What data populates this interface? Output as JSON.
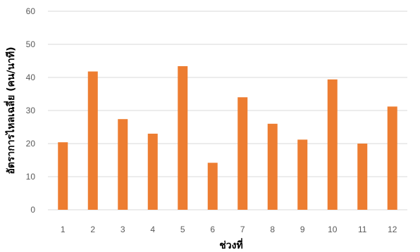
{
  "chart_data": {
    "type": "bar",
    "categories": [
      "1",
      "2",
      "3",
      "4",
      "5",
      "6",
      "7",
      "8",
      "9",
      "10",
      "11",
      "12"
    ],
    "values": [
      20.4,
      41.8,
      27.4,
      23.0,
      43.4,
      14.2,
      34.0,
      26.0,
      21.2,
      39.4,
      20.0,
      31.2
    ],
    "xlabel": "ช่วงที่",
    "ylabel": "อัตราการไหลเฉลี่ย (คน/นาที)",
    "ylim": [
      0,
      60
    ],
    "yticks": [
      0,
      10,
      20,
      30,
      40,
      50,
      60
    ],
    "grid": true,
    "legend": "none",
    "bar_color": "#ED7D31",
    "grid_color": "#D9D9D9"
  }
}
